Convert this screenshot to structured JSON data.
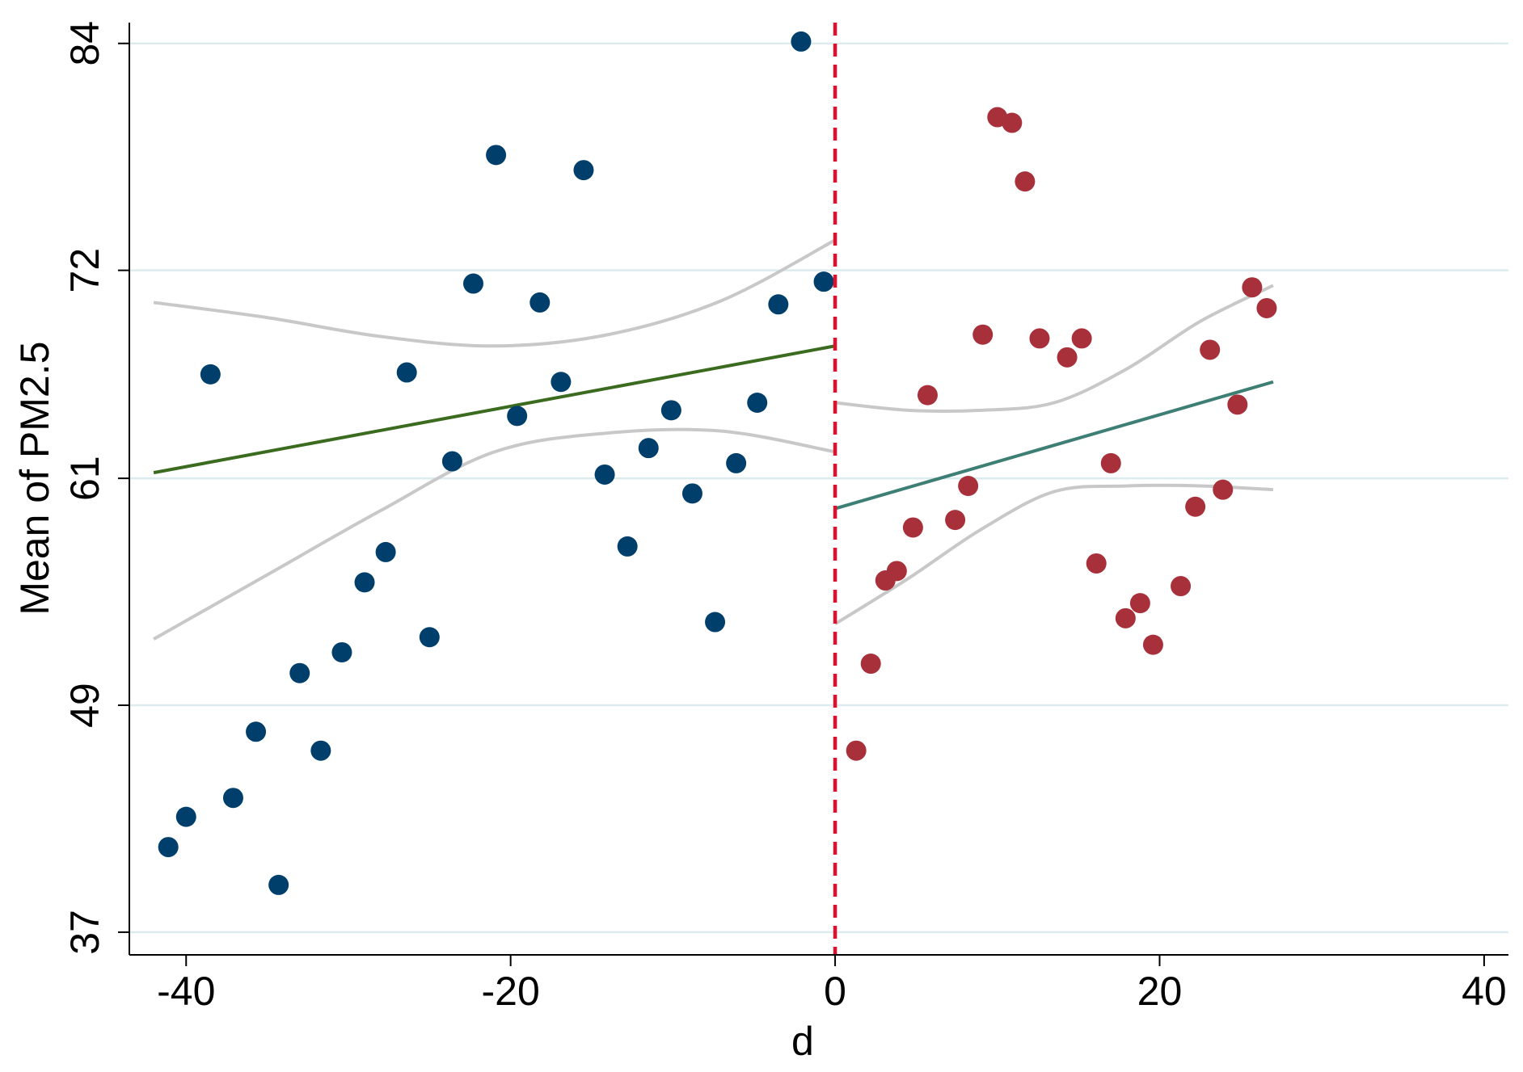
{
  "chart_data": {
    "type": "scatter",
    "title": "",
    "xlabel": "d",
    "ylabel": "Mean of PM2.5",
    "xlim": [
      -43.5,
      41.5
    ],
    "ylim": [
      35.8,
      85.1
    ],
    "x_ticks": [
      -40,
      -20,
      0,
      20,
      40
    ],
    "x_tick_labels": [
      "-40",
      "-20",
      "0",
      "20",
      "40"
    ],
    "y_ticks": [
      37,
      49,
      61,
      72,
      84
    ],
    "y_tick_labels": [
      "37",
      "49",
      "61",
      "72",
      "84"
    ],
    "grid": "horizontal",
    "legend": "none",
    "cutoff": 0,
    "series": [
      {
        "side": "left",
        "color": "#003f6b",
        "points": [
          {
            "x": -41.1,
            "y": 41.5
          },
          {
            "x": -40.0,
            "y": 43.1
          },
          {
            "x": -38.5,
            "y": 66.5
          },
          {
            "x": -37.1,
            "y": 44.1
          },
          {
            "x": -35.7,
            "y": 47.6
          },
          {
            "x": -34.3,
            "y": 39.5
          },
          {
            "x": -33.0,
            "y": 50.7
          },
          {
            "x": -31.7,
            "y": 46.6
          },
          {
            "x": -30.4,
            "y": 51.8
          },
          {
            "x": -29.0,
            "y": 55.5
          },
          {
            "x": -27.7,
            "y": 57.1
          },
          {
            "x": -26.4,
            "y": 66.6
          },
          {
            "x": -25.0,
            "y": 52.6
          },
          {
            "x": -23.6,
            "y": 61.9
          },
          {
            "x": -22.3,
            "y": 71.3
          },
          {
            "x": -20.9,
            "y": 78.1
          },
          {
            "x": -19.6,
            "y": 64.3
          },
          {
            "x": -18.2,
            "y": 70.3
          },
          {
            "x": -16.9,
            "y": 66.1
          },
          {
            "x": -15.5,
            "y": 77.3
          },
          {
            "x": -14.2,
            "y": 61.2
          },
          {
            "x": -12.8,
            "y": 57.4
          },
          {
            "x": -11.5,
            "y": 62.6
          },
          {
            "x": -10.1,
            "y": 64.6
          },
          {
            "x": -8.8,
            "y": 60.2
          },
          {
            "x": -7.4,
            "y": 53.4
          },
          {
            "x": -6.1,
            "y": 61.8
          },
          {
            "x": -4.8,
            "y": 65.0
          },
          {
            "x": -3.5,
            "y": 70.2
          },
          {
            "x": -2.1,
            "y": 84.1
          },
          {
            "x": -0.7,
            "y": 71.4
          }
        ]
      },
      {
        "side": "right",
        "color": "#a8303a",
        "points": [
          {
            "x": 1.3,
            "y": 46.6
          },
          {
            "x": 2.2,
            "y": 51.2
          },
          {
            "x": 3.1,
            "y": 55.6
          },
          {
            "x": 3.8,
            "y": 56.1
          },
          {
            "x": 4.8,
            "y": 58.4
          },
          {
            "x": 5.7,
            "y": 65.4
          },
          {
            "x": 7.4,
            "y": 58.8
          },
          {
            "x": 8.2,
            "y": 60.6
          },
          {
            "x": 9.1,
            "y": 68.6
          },
          {
            "x": 10.0,
            "y": 80.1
          },
          {
            "x": 10.9,
            "y": 79.8
          },
          {
            "x": 11.7,
            "y": 76.7
          },
          {
            "x": 12.6,
            "y": 68.4
          },
          {
            "x": 14.3,
            "y": 67.4
          },
          {
            "x": 15.2,
            "y": 68.4
          },
          {
            "x": 16.1,
            "y": 56.5
          },
          {
            "x": 17.0,
            "y": 61.8
          },
          {
            "x": 17.9,
            "y": 53.6
          },
          {
            "x": 18.8,
            "y": 54.4
          },
          {
            "x": 19.6,
            "y": 52.2
          },
          {
            "x": 21.3,
            "y": 55.3
          },
          {
            "x": 22.2,
            "y": 59.5
          },
          {
            "x": 23.1,
            "y": 67.8
          },
          {
            "x": 23.9,
            "y": 60.4
          },
          {
            "x": 24.8,
            "y": 64.9
          },
          {
            "x": 25.7,
            "y": 71.1
          },
          {
            "x": 26.6,
            "y": 70.0
          }
        ]
      }
    ],
    "fit_lines": [
      {
        "side": "left",
        "color": "#3a6b1f",
        "x": [
          -42,
          0
        ],
        "y": [
          61.3,
          68.0
        ]
      },
      {
        "side": "right",
        "color": "#3d7f74",
        "x": [
          0,
          27
        ],
        "y": [
          59.4,
          66.1
        ]
      }
    ],
    "confidence_bands": [
      {
        "side": "left",
        "color": "#c8c8c8",
        "x": [
          -42,
          -35,
          -28,
          -21,
          -14,
          -7,
          0
        ],
        "upper": [
          70.3,
          69.5,
          68.5,
          68.0,
          68.6,
          70.4,
          73.6
        ],
        "lower": [
          52.5,
          55.9,
          59.3,
          62.4,
          63.4,
          63.5,
          62.4
        ]
      },
      {
        "side": "right",
        "color": "#c8c8c8",
        "x": [
          0,
          4.5,
          9,
          13.5,
          18,
          22.5,
          27
        ],
        "upper": [
          65.0,
          64.6,
          64.6,
          65.0,
          66.8,
          69.3,
          71.2
        ],
        "lower": [
          53.3,
          55.7,
          58.3,
          60.3,
          60.6,
          60.6,
          60.4
        ]
      }
    ]
  }
}
